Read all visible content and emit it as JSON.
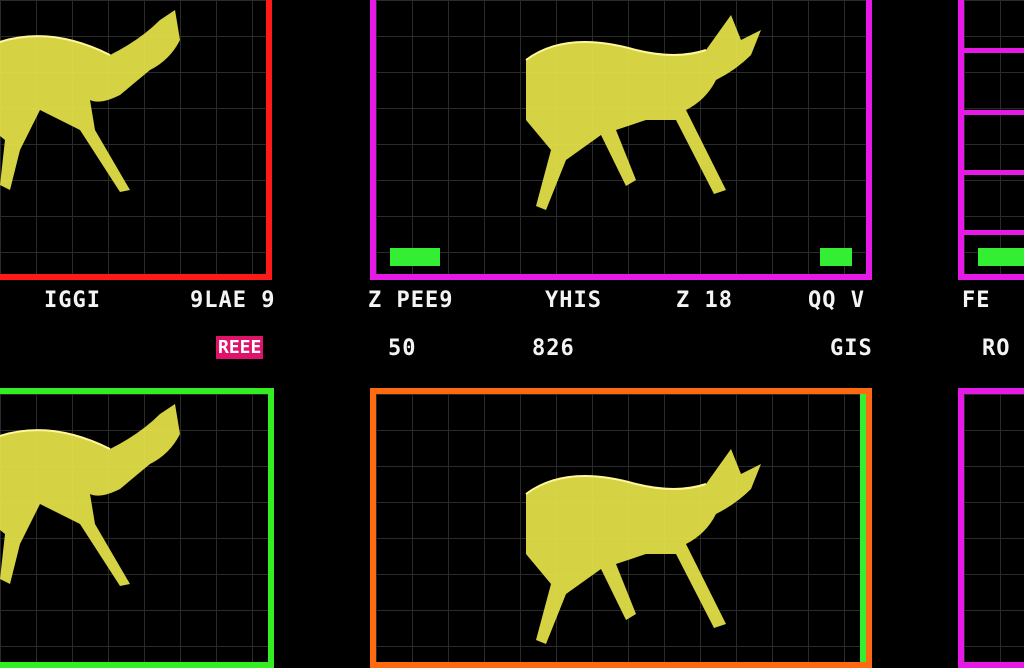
{
  "panels": [
    {
      "color": "#ff1a1a"
    },
    {
      "color": "#e619e6"
    },
    {
      "color": "#e619e6"
    },
    {
      "color": "#33ee22"
    },
    {
      "color": "#ff6a10"
    },
    {
      "color": "#e619e6"
    }
  ],
  "animal_color": "#e7e44a",
  "marker_color": "#33ee33",
  "tag_color": "#e0136a",
  "row1_labels": [
    "IGGI",
    "9LAE 9",
    "Z PEE9",
    "YHIS",
    "Z 18",
    "QQ V",
    "FE"
  ],
  "row2_labels": [
    "50",
    "826",
    "GIS",
    "RO"
  ],
  "tag_text": "REEE"
}
